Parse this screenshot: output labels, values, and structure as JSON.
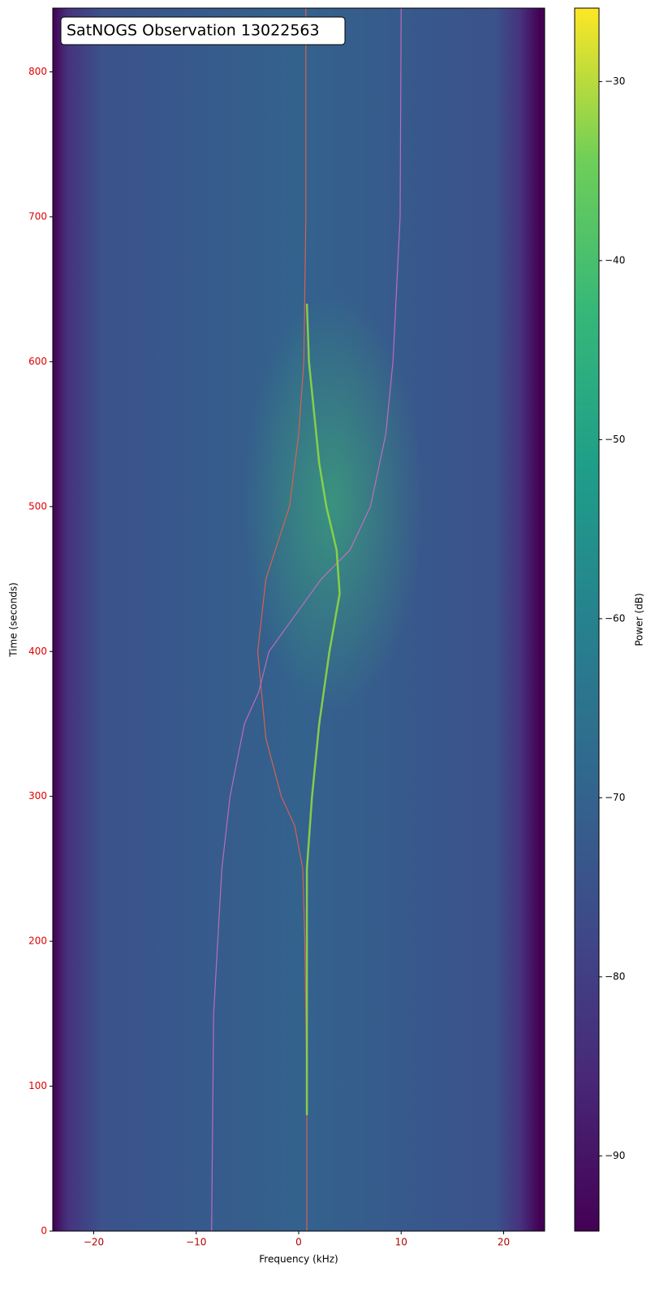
{
  "chart_data": {
    "type": "spectrogram",
    "title": "SatNOGS Observation 13022563",
    "x_label": "Frequency (kHz)",
    "y_label": "Time (seconds)",
    "colorbar_label": "Power (dB)",
    "xlim": [
      -24,
      24
    ],
    "ylim": [
      0,
      844
    ],
    "xticks": [
      {
        "value": -20,
        "label": "−20"
      },
      {
        "value": -10,
        "label": "−10"
      },
      0,
      10,
      20
    ],
    "yticks": [
      0,
      100,
      200,
      300,
      400,
      500,
      600,
      700,
      800
    ],
    "xtick_color": "#b00000",
    "ytick_color": "#e00000",
    "clim": [
      -94.2,
      -25.9
    ],
    "cticks": [
      {
        "value": -30,
        "label": "−30"
      },
      {
        "value": -40,
        "label": "−40"
      },
      {
        "value": -50,
        "label": "−50"
      },
      {
        "value": -60,
        "label": "−60"
      },
      {
        "value": -70,
        "label": "−70"
      },
      {
        "value": -80,
        "label": "−80"
      },
      {
        "value": -90,
        "label": "−90"
      }
    ],
    "series": [
      {
        "color": "#e8604c",
        "x": [
          0.8,
          0.8,
          0.6,
          0.4,
          -0.4,
          -1.7,
          -3.2,
          -4.0,
          -3.2,
          -0.9,
          0,
          0.5,
          0.7,
          0.7
        ],
        "y": [
          0,
          100,
          200,
          250,
          280,
          300,
          340,
          400,
          450,
          500,
          550,
          600,
          700,
          844
        ]
      },
      {
        "color": "#c86fc0",
        "x": [
          -8.5,
          -8.3,
          -7.5,
          -6.7,
          -5.3,
          -3.9,
          -2.9,
          2.2,
          5,
          7,
          8.5,
          9.2,
          9.9,
          10
        ],
        "y": [
          0,
          150,
          250,
          300,
          350,
          372,
          400,
          450,
          470,
          500,
          550,
          600,
          700,
          844
        ]
      },
      {
        "color": "#8fd744",
        "x": [
          0.8,
          0.8,
          1.3,
          2.0,
          3.0,
          4.0,
          3.7,
          2.7,
          2.0,
          1.0,
          0.8
        ],
        "y": [
          80,
          250,
          300,
          350,
          400,
          440,
          470,
          500,
          530,
          600,
          640
        ]
      }
    ]
  }
}
